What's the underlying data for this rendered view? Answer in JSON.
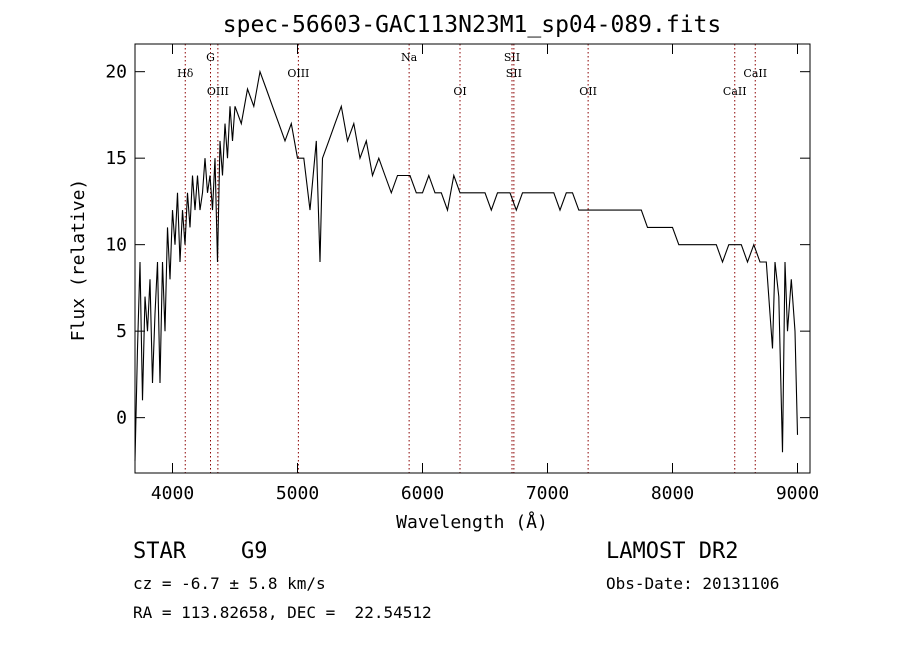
{
  "chart_data": {
    "type": "line",
    "title": "spec-56603-GAC113N23M1_sp04-089.fits",
    "xlabel": "Wavelength (Å)",
    "ylabel": "Flux (relative)",
    "xlim": [
      3700,
      9100
    ],
    "ylim": [
      -3.2,
      21.6
    ],
    "x_ticks": [
      4000,
      5000,
      6000,
      7000,
      8000,
      9000
    ],
    "y_ticks": [
      0,
      5,
      10,
      15,
      20
    ],
    "grid": false,
    "line_color": "#000000",
    "marker_color": "#8b0000",
    "lines": [
      {
        "label": "Hδ",
        "x": 4102,
        "row": 1
      },
      {
        "label": "G",
        "x": 4304,
        "row": 0
      },
      {
        "label": "OIII",
        "x": 4363,
        "row": 2
      },
      {
        "label": "OIII",
        "x": 5007,
        "row": 1
      },
      {
        "label": "Na",
        "x": 5893,
        "row": 0
      },
      {
        "label": "OI",
        "x": 6300,
        "row": 2
      },
      {
        "label": "SII",
        "x": 6716,
        "row": 0
      },
      {
        "label": "SII",
        "x": 6731,
        "row": 1
      },
      {
        "label": "OII",
        "x": 7325,
        "row": 2
      },
      {
        "label": "CaII",
        "x": 8498,
        "row": 2
      },
      {
        "label": "CaII",
        "x": 8662,
        "row": 1
      }
    ],
    "series": [
      {
        "x": [
          3700,
          3720,
          3740,
          3760,
          3780,
          3800,
          3820,
          3840,
          3860,
          3880,
          3900,
          3920,
          3940,
          3960,
          3980,
          4000,
          4020,
          4040,
          4060,
          4080,
          4100,
          4120,
          4140,
          4160,
          4180,
          4200,
          4220,
          4240,
          4260,
          4280,
          4300,
          4320,
          4340,
          4360,
          4380,
          4400,
          4420,
          4440,
          4460,
          4480,
          4500,
          4550,
          4600,
          4650,
          4700,
          4750,
          4800,
          4850,
          4900,
          4950,
          5000,
          5050,
          5100,
          5150,
          5180,
          5200,
          5250,
          5300,
          5350,
          5400,
          5450,
          5500,
          5550,
          5600,
          5650,
          5700,
          5750,
          5800,
          5850,
          5900,
          5950,
          6000,
          6050,
          6100,
          6150,
          6200,
          6250,
          6300,
          6350,
          6400,
          6450,
          6500,
          6550,
          6600,
          6650,
          6700,
          6750,
          6800,
          6850,
          6900,
          6950,
          7000,
          7050,
          7100,
          7150,
          7200,
          7250,
          7300,
          7350,
          7400,
          7450,
          7500,
          7550,
          7600,
          7650,
          7700,
          7750,
          7800,
          7850,
          7900,
          7950,
          8000,
          8050,
          8100,
          8150,
          8200,
          8250,
          8300,
          8350,
          8400,
          8450,
          8500,
          8550,
          8600,
          8650,
          8700,
          8750,
          8780,
          8800,
          8820,
          8850,
          8880,
          8900,
          8920,
          8950,
          8980,
          9000
        ],
        "y": [
          -2.5,
          4,
          9,
          1,
          7,
          5,
          8,
          2,
          6,
          9,
          2,
          9,
          5,
          11,
          8,
          12,
          10,
          13,
          9,
          12,
          10,
          13,
          11,
          14,
          12,
          14,
          12,
          13,
          15,
          13,
          14,
          12,
          15,
          9,
          16,
          14,
          17,
          15,
          18,
          16,
          18,
          17,
          19,
          18,
          20,
          19,
          18,
          17,
          16,
          17,
          15,
          15,
          12,
          16,
          9,
          15,
          16,
          17,
          18,
          16,
          17,
          15,
          16,
          14,
          15,
          14,
          13,
          14,
          14,
          14,
          13,
          13,
          14,
          13,
          13,
          12,
          14,
          13,
          13,
          13,
          13,
          13,
          12,
          13,
          13,
          13,
          12,
          13,
          13,
          13,
          13,
          13,
          13,
          12,
          13,
          13,
          12,
          12,
          12,
          12,
          12,
          12,
          12,
          12,
          12,
          12,
          12,
          11,
          11,
          11,
          11,
          11,
          10,
          10,
          10,
          10,
          10,
          10,
          10,
          9,
          10,
          10,
          10,
          9,
          10,
          9,
          9,
          6,
          4,
          9,
          7,
          -2,
          9,
          5,
          8,
          5,
          -1
        ]
      }
    ]
  },
  "info": {
    "object_class": "STAR",
    "subclass": "G9",
    "survey": "LAMOST DR2",
    "cz": "cz = -6.7 ± 5.8 km/s",
    "obs_date": "Obs-Date: 20131106",
    "coords": "RA = 113.82658, DEC =  22.54512"
  }
}
